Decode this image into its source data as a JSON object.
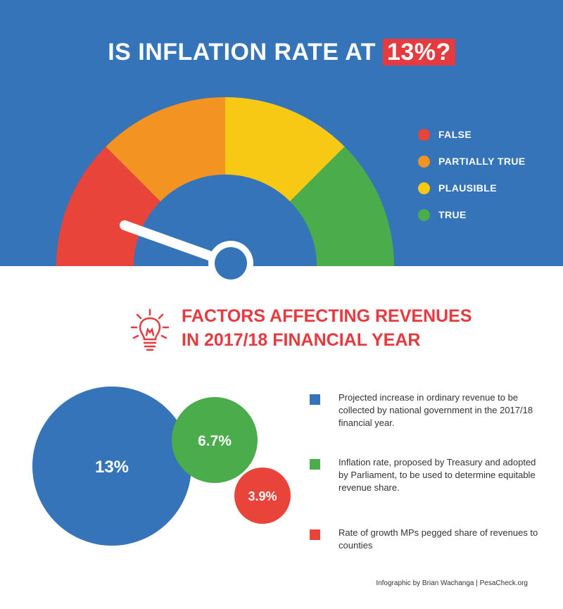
{
  "header": {
    "title_prefix": "IS INFLATION RATE AT ",
    "title_highlight": "13%?"
  },
  "gauge": {
    "segments": [
      {
        "label": "FALSE",
        "color": "#e8443a"
      },
      {
        "label": "PARTIALLY TRUE",
        "color": "#f39322"
      },
      {
        "label": "PLAUSIBLE",
        "color": "#f7c914"
      },
      {
        "label": "TRUE",
        "color": "#4aac4a"
      }
    ],
    "needle_points_to": "FALSE",
    "hub_icon": "gauge-needle-icon"
  },
  "factors_section": {
    "title_line1": "FACTORS AFFECTING REVENUES",
    "title_line2": "IN 2017/18 FINANCIAL YEAR",
    "icon": "lightbulb-icon"
  },
  "bubbles": [
    {
      "value": "13%",
      "color": "#3574b8"
    },
    {
      "value": "6.7%",
      "color": "#4aac4a"
    },
    {
      "value": "3.9%",
      "color": "#e8443a"
    }
  ],
  "factors": [
    {
      "color": "#3574b8",
      "text": "Projected increase in ordinary revenue to be collected by national government in the 2017/18 financial year."
    },
    {
      "color": "#4aac4a",
      "text": "Inflation rate, proposed by Treasury and adopted by Parliament, to be used to determine equitable revenue share."
    },
    {
      "color": "#e8443a",
      "text": "Rate of growth MPs pegged share of revenues to counties"
    }
  ],
  "credit": "Infographic by Brian Wachanga | PesaCheck.org"
}
